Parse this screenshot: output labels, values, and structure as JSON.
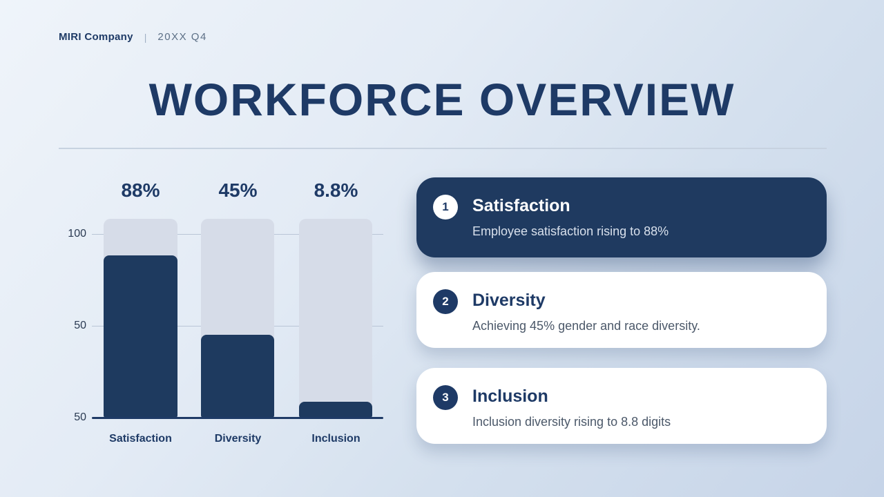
{
  "header": {
    "company": "MIRI Company",
    "separator": "|",
    "period": "20XX Q4"
  },
  "title": "WORKFORCE OVERVIEW",
  "chart_data": {
    "type": "bar",
    "categories": [
      "Satisfaction",
      "Diversity",
      "Inclusion"
    ],
    "values": [
      88,
      45,
      8.8
    ],
    "value_labels": [
      "88%",
      "45%",
      "8.8%"
    ],
    "y_ticks": [
      "100",
      "50",
      "50"
    ],
    "ylim": [
      0,
      108
    ],
    "grid": true,
    "title": "",
    "xlabel": "",
    "ylabel": "",
    "bar_color": "#1e3a5f",
    "track_color": "#d6dce8",
    "legend": "none"
  },
  "cards": [
    {
      "number": "1",
      "title": "Satisfaction",
      "description": "Employee satisfaction rising to 88%",
      "variant": "dark"
    },
    {
      "number": "2",
      "title": "Diversity",
      "description": "Achieving 45% gender and race diversity.",
      "variant": "light"
    },
    {
      "number": "3",
      "title": "Inclusion",
      "description": "Inclusion diversity rising to 8.8 digits",
      "variant": "light"
    }
  ],
  "colors": {
    "navy": "#1e3a66",
    "bar_navy": "#1e3a5f",
    "track": "#d6dce8",
    "card_dark": "#1f3a60",
    "background_start": "#eff4fa",
    "background_end": "#c6d4e8"
  }
}
